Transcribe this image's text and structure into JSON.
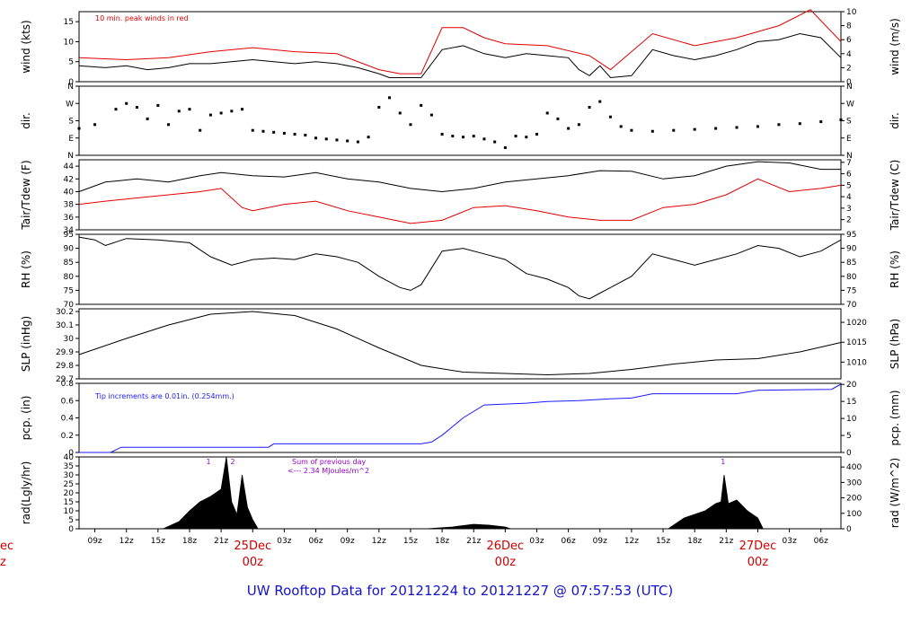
{
  "title": "UW Rooftop Data for 20121224  to  20121227 @ 07:57:53  (UTC)",
  "colors": {
    "black": "#000000",
    "red": "#e00000",
    "blue": "#1a1aff",
    "purple": "#9900cc",
    "title": "#1414c8",
    "day": "#cc0000"
  },
  "x_axis": {
    "range": [
      7.5,
      79.9
    ],
    "hour_ticks": [
      {
        "t": 9,
        "label": "09z"
      },
      {
        "t": 12,
        "label": "12z"
      },
      {
        "t": 15,
        "label": "15z"
      },
      {
        "t": 18,
        "label": "18z"
      },
      {
        "t": 21,
        "label": "21z"
      },
      {
        "t": 24,
        "label": ""
      },
      {
        "t": 27,
        "label": "03z"
      },
      {
        "t": 30,
        "label": "06z"
      },
      {
        "t": 33,
        "label": "09z"
      },
      {
        "t": 36,
        "label": "12z"
      },
      {
        "t": 39,
        "label": "15z"
      },
      {
        "t": 42,
        "label": "18z"
      },
      {
        "t": 45,
        "label": "21z"
      },
      {
        "t": 48,
        "label": ""
      },
      {
        "t": 51,
        "label": "03z"
      },
      {
        "t": 54,
        "label": "06z"
      },
      {
        "t": 57,
        "label": "09z"
      },
      {
        "t": 60,
        "label": "12z"
      },
      {
        "t": 63,
        "label": "15z"
      },
      {
        "t": 66,
        "label": "18z"
      },
      {
        "t": 69,
        "label": "21z"
      },
      {
        "t": 72,
        "label": ""
      },
      {
        "t": 75,
        "label": "03z"
      },
      {
        "t": 78,
        "label": "06z"
      }
    ],
    "day_labels": [
      {
        "t": 24,
        "day": "25Dec",
        "hour": "00z"
      },
      {
        "t": 48,
        "day": "26Dec",
        "hour": "00z"
      },
      {
        "t": 72,
        "day": "27Dec",
        "hour": "00z"
      }
    ],
    "left_cut": {
      "day": "ec",
      "hour": "z"
    }
  },
  "chart_data": [
    {
      "type": "line",
      "id": "wind",
      "ylabel_left": "wind (kts)",
      "ylabel_right": "wind (m/s)",
      "ylim": [
        0,
        17.5
      ],
      "yticks": [
        0,
        5,
        10,
        15
      ],
      "right_ylim": [
        0,
        10
      ],
      "right_yticks": [
        0,
        2,
        4,
        6,
        8,
        10
      ],
      "annotation": "10 min. peak winds in red",
      "series": [
        {
          "name": "wind speed",
          "color": "#000000",
          "t": [
            7.5,
            10,
            12,
            14,
            16,
            18,
            20,
            22,
            24,
            26,
            28,
            30,
            32,
            34,
            36,
            37,
            38,
            40,
            42,
            44,
            46,
            48,
            50,
            52,
            54,
            55,
            56,
            57,
            58,
            60,
            62,
            64,
            66,
            68,
            70,
            72,
            74,
            76,
            78,
            79.9
          ],
          "values": [
            4,
            3.5,
            4,
            3,
            3.5,
            4.5,
            4.5,
            5,
            5.5,
            5,
            4.5,
            5,
            4.5,
            3.5,
            2,
            1,
            1,
            1,
            8,
            9,
            7,
            6,
            7,
            6.5,
            6,
            3,
            1.5,
            4,
            1,
            1.5,
            8,
            6.5,
            5.5,
            6.5,
            8,
            10,
            10.5,
            12,
            11,
            6
          ]
        },
        {
          "name": "peak wind",
          "color": "#e00000",
          "t": [
            7.5,
            12,
            16,
            20,
            24,
            28,
            32,
            36,
            38,
            40,
            42,
            44,
            46,
            48,
            52,
            56,
            58,
            62,
            66,
            70,
            74,
            77,
            79.9
          ],
          "values": [
            6,
            5.5,
            6,
            7.5,
            8.5,
            7.5,
            7,
            3,
            2,
            2,
            13.5,
            13.5,
            11,
            9.5,
            9,
            6.5,
            3,
            12,
            9,
            11,
            14,
            18,
            10
          ]
        }
      ]
    },
    {
      "type": "scatter",
      "id": "dir",
      "ylabel_left": "dir.",
      "ylabel_right": "dir.",
      "ylim": [
        0,
        360
      ],
      "yticks": [
        {
          "v": 0,
          "label": "N"
        },
        {
          "v": 90,
          "label": "E"
        },
        {
          "v": 180,
          "label": "S"
        },
        {
          "v": 270,
          "label": "W"
        },
        {
          "v": 360,
          "label": "N"
        }
      ],
      "series": [
        {
          "name": "wind direction",
          "color": "#000000",
          "t": [
            7.5,
            9,
            11,
            12,
            13,
            14,
            15,
            16,
            17,
            18,
            19,
            20,
            21,
            22,
            23,
            24,
            25,
            26,
            27,
            28,
            29,
            30,
            31,
            32,
            33,
            34,
            35,
            36,
            37,
            38,
            39,
            40,
            41,
            42,
            43,
            44,
            45,
            46,
            47,
            48,
            49,
            50,
            51,
            52,
            53,
            54,
            55,
            56,
            57,
            58,
            59,
            60,
            62,
            64,
            66,
            68,
            70,
            72,
            74,
            76,
            78,
            79.9
          ],
          "values": [
            140,
            160,
            240,
            270,
            250,
            190,
            260,
            160,
            230,
            240,
            130,
            210,
            220,
            230,
            240,
            130,
            125,
            120,
            115,
            110,
            105,
            90,
            85,
            80,
            75,
            70,
            95,
            250,
            300,
            220,
            160,
            260,
            210,
            110,
            100,
            95,
            100,
            85,
            70,
            40,
            100,
            95,
            110,
            220,
            190,
            140,
            160,
            250,
            280,
            200,
            150,
            130,
            125,
            130,
            135,
            140,
            145,
            150,
            160,
            165,
            175,
            185
          ]
        }
      ]
    },
    {
      "type": "line",
      "id": "temp",
      "ylabel_left": "Tair/Tdew (F)",
      "ylabel_right": "Tair/Tdew (C)",
      "ylim": [
        34,
        45
      ],
      "yticks": [
        34,
        36,
        38,
        40,
        42,
        44
      ],
      "right_ylim": [
        1.11,
        7.22
      ],
      "right_yticks": [
        2,
        3,
        4,
        5,
        6,
        7
      ],
      "series": [
        {
          "name": "air temperature",
          "color": "#000000",
          "t": [
            7.5,
            10,
            13,
            16,
            19,
            21,
            24,
            27,
            30,
            33,
            36,
            39,
            42,
            45,
            48,
            51,
            54,
            57,
            60,
            63,
            66,
            69,
            72,
            75,
            78,
            79.9
          ],
          "values": [
            40,
            41.5,
            42,
            41.5,
            42.5,
            43,
            42.5,
            42.3,
            43,
            42,
            41.5,
            40.5,
            40,
            40.5,
            41.5,
            42,
            42.5,
            43.3,
            43.2,
            42,
            42.5,
            44,
            44.7,
            44.5,
            43.5,
            43.5
          ]
        },
        {
          "name": "dewpoint",
          "color": "#e00000",
          "t": [
            7.5,
            10,
            13,
            16,
            19,
            21,
            23,
            24,
            27,
            30,
            33,
            36,
            39,
            42,
            45,
            48,
            51,
            54,
            57,
            60,
            63,
            66,
            69,
            72,
            75,
            78,
            79.9
          ],
          "values": [
            38,
            38.5,
            39,
            39.5,
            40,
            40.5,
            37.5,
            37,
            38,
            38.5,
            37,
            36,
            35,
            35.5,
            37.5,
            37.8,
            37,
            36,
            35.5,
            35.5,
            37.5,
            38,
            39.5,
            42,
            40,
            40.5,
            41
          ]
        }
      ]
    },
    {
      "type": "line",
      "id": "rh",
      "ylabel_left": "RH (%)",
      "ylabel_right": "RH (%)",
      "ylim": [
        70,
        95
      ],
      "yticks": [
        70,
        75,
        80,
        85,
        90,
        95
      ],
      "series": [
        {
          "name": "relative humidity",
          "color": "#000000",
          "t": [
            7.5,
            9,
            10,
            12,
            15,
            18,
            20,
            22,
            24,
            26,
            28,
            30,
            32,
            34,
            36,
            38,
            39,
            40,
            42,
            44,
            46,
            48,
            50,
            52,
            54,
            55,
            56,
            57,
            58,
            60,
            62,
            64,
            66,
            68,
            70,
            72,
            74,
            76,
            78,
            79.9
          ],
          "values": [
            94,
            93,
            91,
            93.5,
            93,
            92,
            87,
            84,
            86,
            86.5,
            86,
            88,
            87,
            85,
            80,
            76,
            75,
            77,
            89,
            90,
            88,
            86,
            81,
            79,
            76,
            73,
            72,
            74,
            76,
            80,
            88,
            86,
            84,
            86,
            88,
            91,
            90,
            87,
            89,
            93
          ]
        }
      ]
    },
    {
      "type": "line",
      "id": "slp",
      "ylabel_left": "SLP (inHg)",
      "ylabel_right": "SLP (hPa)",
      "ylim": [
        29.7,
        30.22
      ],
      "yticks": [
        29.7,
        29.8,
        29.9,
        30.0,
        30.1,
        30.2
      ],
      "right_ylim": [
        1005.8,
        1023.4
      ],
      "right_yticks": [
        1010,
        1015,
        1020
      ],
      "series": [
        {
          "name": "sea level pressure",
          "color": "#000000",
          "t": [
            7.5,
            12,
            16,
            20,
            24,
            28,
            32,
            36,
            40,
            44,
            48,
            52,
            56,
            60,
            64,
            68,
            72,
            76,
            79.9
          ],
          "values": [
            29.88,
            30.0,
            30.1,
            30.18,
            30.2,
            30.17,
            30.07,
            29.93,
            29.8,
            29.75,
            29.74,
            29.73,
            29.74,
            29.77,
            29.81,
            29.84,
            29.85,
            29.9,
            29.97
          ]
        }
      ]
    },
    {
      "type": "line",
      "id": "pcp",
      "ylabel_left": "pcp. (in)",
      "ylabel_right": "pcp. (mm)",
      "ylim": [
        0,
        0.8
      ],
      "yticks": [
        0,
        0.2,
        0.4,
        0.6,
        0.8
      ],
      "right_ylim": [
        0,
        20.32
      ],
      "right_yticks": [
        0,
        5,
        10,
        15,
        20
      ],
      "annotation": "Tip increments are 0.01in. (0.254mm.)",
      "series": [
        {
          "name": "accumulated precipitation",
          "color": "#1a1aff",
          "t": [
            7.5,
            10.5,
            11.5,
            25.5,
            26,
            40,
            41,
            42,
            44,
            46,
            50,
            52,
            55,
            58,
            60,
            62,
            70,
            72,
            79,
            79.9
          ],
          "values": [
            0,
            0,
            0.06,
            0.06,
            0.1,
            0.1,
            0.12,
            0.2,
            0.4,
            0.55,
            0.57,
            0.59,
            0.6,
            0.62,
            0.63,
            0.68,
            0.68,
            0.72,
            0.73,
            0.79
          ]
        }
      ]
    },
    {
      "type": "area",
      "id": "rad",
      "ylabel_left": "rad(Lgly/hr)",
      "ylabel_right": "rad (W/m^2)",
      "ylim": [
        0,
        40
      ],
      "yticks": [
        0,
        5,
        10,
        15,
        20,
        25,
        30,
        35,
        40
      ],
      "right_ylim": [
        0,
        465
      ],
      "right_yticks": [
        0,
        100,
        200,
        300,
        400
      ],
      "annotation_lines": [
        "Sum of previous day",
        "<--- 2.34 MJoules/m^2"
      ],
      "peak_marks": [
        {
          "t": 19.8,
          "label": "1"
        },
        {
          "t": 22.1,
          "label": "2"
        },
        {
          "t": 68.7,
          "label": "1"
        }
      ],
      "series": [
        {
          "name": "solar radiation",
          "color": "#000000",
          "t": [
            15.5,
            17,
            18,
            19,
            20,
            21,
            21.5,
            22,
            22.5,
            23,
            23.5,
            24,
            24.5,
            40.5,
            43,
            45,
            46.5,
            48,
            48.5,
            63.5,
            65,
            67,
            68,
            68.5,
            68.8,
            69.2,
            70,
            71,
            72,
            72.5
          ],
          "values": [
            0,
            4,
            10,
            15,
            18,
            22,
            40,
            15,
            8,
            30,
            12,
            5,
            0,
            0,
            1,
            2.5,
            2,
            1,
            0,
            0,
            6,
            10,
            14,
            15,
            30,
            14,
            16,
            10,
            6,
            0
          ]
        }
      ]
    }
  ]
}
